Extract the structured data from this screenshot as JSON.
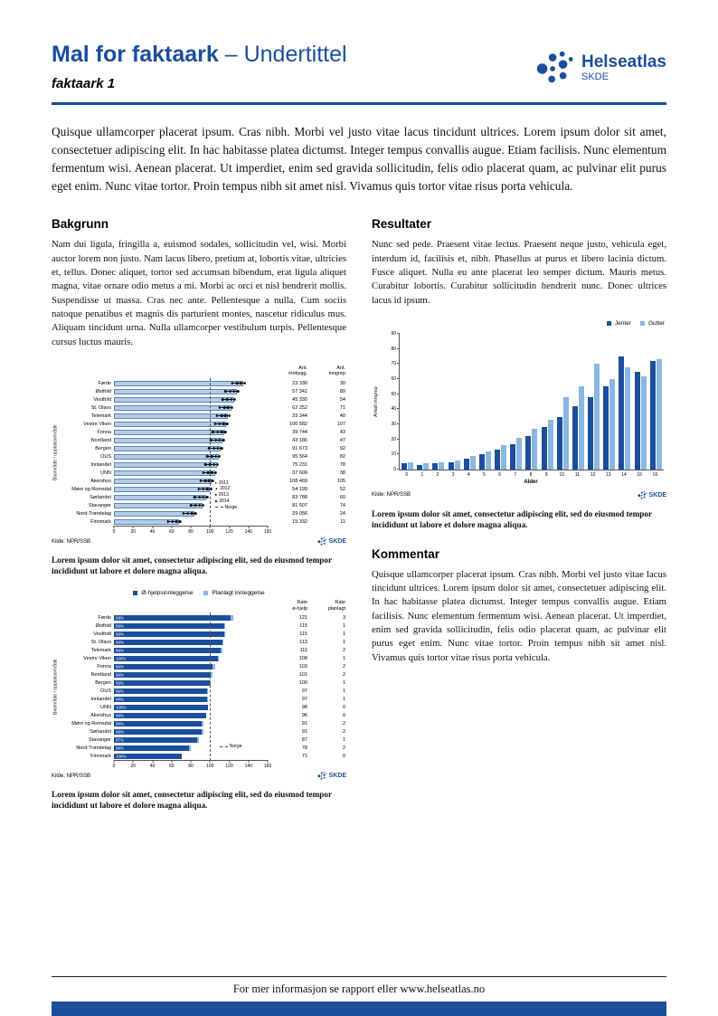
{
  "header": {
    "title": "Mal for faktaark",
    "subtitle": "– Undertittel",
    "docname": "faktaark 1",
    "logo_name": "Helseatlas",
    "logo_sub": "SKDE"
  },
  "intro": "Quisque ullamcorper placerat ipsum. Cras nibh. Morbi vel justo vitae lacus tincidunt ultrices. Lorem ipsum dolor sit amet, consectetuer adipiscing elit. In hac habitasse platea dictumst. Integer tempus convallis augue. Etiam facilisis. Nunc elementum fermentum wisi. Aenean placerat. Ut imperdiet, enim sed gravida sollicitudin, felis odio placerat quam, ac pulvinar elit purus eget enim. Nunc vitae tortor. Proin tempus nibh sit amet nisl. Vivamus quis tortor vitae risus porta vehicula.",
  "bakgrunn": {
    "heading": "Bakgrunn",
    "body": "Nam dui ligula, fringilla a, euismod sodales, sollicitudin vel, wisi. Morbi auctor lorem non justo. Nam lacus libero, pretium at, lobortis vitae, ultricies et, tellus. Donec aliquet, tortor sed accumsan bibendum, erat ligula aliquet magna, vitae ornare odio metus a mi. Morbi ac orci et nisl hendrerit mollis. Suspendisse ut massa. Cras nec ante. Pellentesque a nulla. Cum sociis natoque penatibus et magnis dis parturient montes, nascetur ridiculus mus. Aliquam tincidunt urna. Nulla ullamcorper vestibulum turpis. Pellentesque cursus luctus mauris."
  },
  "resultater": {
    "heading": "Resultater",
    "body": "Nunc sed pede. Praesent vitae lectus. Praesent neque justo, vehicula eget, interdum id, facilisis et, nibh. Phasellus at purus et libero lacinia dictum. Fusce aliquet. Nulla eu ante placerat leo semper dictum. Mauris metus. Curabitur lobortis. Curabitur sollicitudin hendrerit nunc. Donec ultrices lacus id ipsum."
  },
  "kommentar": {
    "heading": "Kommentar",
    "body": "Quisque ullamcorper placerat ipsum. Cras nibh. Morbi vel justo vitae lacus tincidunt ultrices. Lorem ipsum dolor sit amet, consectetuer adipiscing elit. In hac habitasse platea dictumst. Integer tempus convallis augue. Etiam facilisis. Nunc elementum fermentum wisi. Aenean placerat. Ut imperdiet, enim sed gravida sollicitudin, felis odio placerat quam, ac pulvinar elit purus eget enim. Nunc vitae tortor. Proin tempus nibh sit amet nisl. Vivamus quis tortor vitae risus porta vehicula."
  },
  "captions": {
    "chart1": "Lorem ipsum dolor sit amet, consectetur adipiscing elit, sed do eiusmod tempor incididunt ut labore et dolore magna aliqua.",
    "chart2": "Lorem ipsum dolor sit amet, consectetur adipiscing elit, sed do eiusmod tempor incididunt ut labore et dolore magna aliqua.",
    "chart3": "Lorem ipsum dolor sit amet, consectetur adipiscing elit, sed do eiusmod tempor incididunt ut labore et dolore magna aliqua."
  },
  "footer": {
    "text": "For mer informasjon se rapport eller www.helseatlas.no"
  },
  "colors": {
    "brand_blue": "#1b4e9b",
    "bar_light": "#b3cde8",
    "bar_light_border": "#5585bb",
    "bar_dark": "#1b4e9b",
    "bar_mid_light": "#8ab7e4",
    "footer_bar": "#1b4e9b"
  },
  "chart_data": [
    {
      "id": "chart1",
      "type": "bar",
      "orientation": "horizontal",
      "ylabel": "Boområde / opptaksområde",
      "xlim": [
        0,
        160
      ],
      "xticks": [
        0,
        20,
        40,
        60,
        80,
        100,
        120,
        140,
        160
      ],
      "norge_value": 100,
      "legend": [
        "2011",
        "2012",
        "2013",
        "2014",
        "Norge"
      ],
      "columns": [
        "Ant.\ninnbygg.",
        "Ant.\ninngrep"
      ],
      "source": "Kilde: NPR/SSB",
      "rows": [
        {
          "name": "Førde",
          "rate": 135,
          "innbygg": "23 330",
          "inngrep": "30"
        },
        {
          "name": "Østfold",
          "rate": 128,
          "innbygg": "57 341",
          "inngrep": "89"
        },
        {
          "name": "Vestfold",
          "rate": 125,
          "innbygg": "45 330",
          "inngrep": "54"
        },
        {
          "name": "St. Olavs",
          "rate": 122,
          "innbygg": "62 252",
          "inngrep": "71"
        },
        {
          "name": "Telemark",
          "rate": 119,
          "innbygg": "33 344",
          "inngrep": "40"
        },
        {
          "name": "Vestre Viken",
          "rate": 117,
          "innbygg": "100 582",
          "inngrep": "107"
        },
        {
          "name": "Fonna",
          "rate": 115,
          "innbygg": "39 744",
          "inngrep": "43"
        },
        {
          "name": "Nordland",
          "rate": 113,
          "innbygg": "43 186",
          "inngrep": "47"
        },
        {
          "name": "Bergen",
          "rate": 111,
          "innbygg": "91 673",
          "inngrep": "92"
        },
        {
          "name": "OUS",
          "rate": 109,
          "innbygg": "95 564",
          "inngrep": "82"
        },
        {
          "name": "Innlandet",
          "rate": 107,
          "innbygg": "75 231",
          "inngrep": "78"
        },
        {
          "name": "UNN",
          "rate": 105,
          "innbygg": "37 609",
          "inngrep": "38"
        },
        {
          "name": "Akershus",
          "rate": 102,
          "innbygg": "108 469",
          "inngrep": "105"
        },
        {
          "name": "Møre og Romsdal",
          "rate": 100,
          "innbygg": "54 199",
          "inngrep": "52"
        },
        {
          "name": "Sørlandet",
          "rate": 96,
          "innbygg": "83 788",
          "inngrep": "60"
        },
        {
          "name": "Stavanger",
          "rate": 92,
          "innbygg": "81 507",
          "inngrep": "74"
        },
        {
          "name": "Nord-Trøndelag",
          "rate": 84,
          "innbygg": "29 056",
          "inngrep": "24"
        },
        {
          "name": "Finnmark",
          "rate": 68,
          "innbygg": "15 332",
          "inngrep": "11"
        }
      ]
    },
    {
      "id": "chart2",
      "type": "bar",
      "orientation": "horizontal",
      "stacked": true,
      "ylabel": "Boområde / opptaksområde",
      "xlim": [
        0,
        160
      ],
      "xticks": [
        0,
        20,
        40,
        60,
        80,
        100,
        120,
        140,
        160
      ],
      "norge_value": 100,
      "norge_label": "Norge",
      "legend": [
        "Ø-hjelpsinnleggelse",
        "Planlagt innleggelse"
      ],
      "columns": [
        "Rate\nø-hjelp",
        "Rate\nplanlagt"
      ],
      "source": "Kilde: NPR/SSB",
      "rows": [
        {
          "name": "Førde",
          "pct": "98%",
          "ohjelp": 121,
          "planlagt": 3
        },
        {
          "name": "Østfold",
          "pct": "99%",
          "ohjelp": 115,
          "planlagt": 1
        },
        {
          "name": "Vestfold",
          "pct": "99%",
          "ohjelp": 115,
          "planlagt": 1
        },
        {
          "name": "St. Olavs",
          "pct": "99%",
          "ohjelp": 113,
          "planlagt": 1
        },
        {
          "name": "Telemark",
          "pct": "99%",
          "ohjelp": 111,
          "planlagt": 2
        },
        {
          "name": "Vestre Viken",
          "pct": "100%",
          "ohjelp": 108,
          "planlagt": 1
        },
        {
          "name": "Fonna",
          "pct": "99%",
          "ohjelp": 103,
          "planlagt": 2
        },
        {
          "name": "Nordland",
          "pct": "99%",
          "ohjelp": 101,
          "planlagt": 2
        },
        {
          "name": "Bergen",
          "pct": "99%",
          "ohjelp": 100,
          "planlagt": 1
        },
        {
          "name": "OUS",
          "pct": "99%",
          "ohjelp": 97,
          "planlagt": 1
        },
        {
          "name": "Innlandet",
          "pct": "99%",
          "ohjelp": 97,
          "planlagt": 1
        },
        {
          "name": "UNN",
          "pct": "100%",
          "ohjelp": 98,
          "planlagt": 0
        },
        {
          "name": "Akershus",
          "pct": "98%",
          "ohjelp": 96,
          "planlagt": 0
        },
        {
          "name": "Møre og Romsdal",
          "pct": "98%",
          "ohjelp": 91,
          "planlagt": 2
        },
        {
          "name": "Sørlandet",
          "pct": "98%",
          "ohjelp": 91,
          "planlagt": 2
        },
        {
          "name": "Stavanger",
          "pct": "97%",
          "ohjelp": 87,
          "planlagt": 1
        },
        {
          "name": "Nord-Trøndelag",
          "pct": "98%",
          "ohjelp": 78,
          "planlagt": 2
        },
        {
          "name": "Finnmark",
          "pct": "100%",
          "ohjelp": 71,
          "planlagt": 0
        }
      ]
    },
    {
      "id": "chart3",
      "type": "bar",
      "orientation": "vertical",
      "grouped": true,
      "xlabel": "Alder",
      "ylabel": "Antall inngrep",
      "ylim": [
        0,
        90
      ],
      "yticks": [
        0,
        10,
        20,
        30,
        40,
        50,
        60,
        70,
        80,
        90
      ],
      "categories": [
        "0",
        "1",
        "2",
        "3",
        "4",
        "5",
        "6",
        "7",
        "8",
        "9",
        "10",
        "11",
        "12",
        "13",
        "14",
        "15",
        "16"
      ],
      "series": [
        {
          "name": "Jenter",
          "values": [
            4,
            3,
            4,
            5,
            7,
            10,
            13,
            17,
            22,
            28,
            35,
            42,
            48,
            55,
            75,
            65,
            72
          ]
        },
        {
          "name": "Gutter",
          "values": [
            5,
            4,
            5,
            6,
            9,
            12,
            16,
            21,
            27,
            33,
            48,
            55,
            70,
            60,
            68,
            62,
            73
          ]
        }
      ],
      "source": "Kilde: NPR/SSB"
    }
  ]
}
